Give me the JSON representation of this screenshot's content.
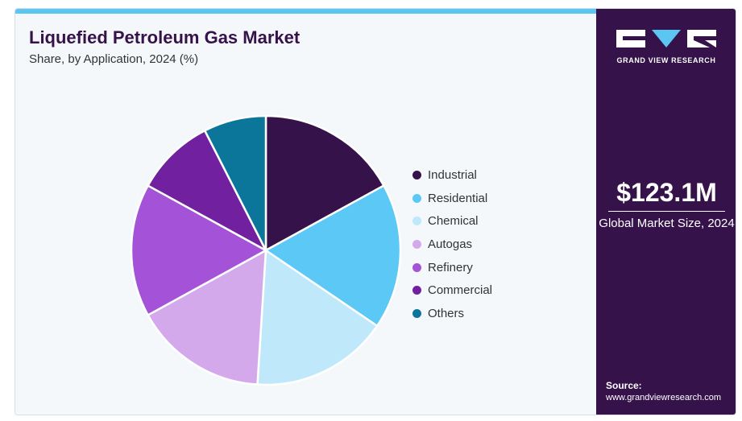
{
  "header": {
    "title": "Liquefied Petroleum Gas Market",
    "subtitle": "Share, by Application, 2024 (%)"
  },
  "brand": {
    "name": "GRAND VIEW RESEARCH",
    "logo_icon": "gvr-logo-icon"
  },
  "market": {
    "value": "$123.1M",
    "label": "Global Market Size, 2024"
  },
  "source": {
    "label": "Source:",
    "url": "www.grandviewresearch.com"
  },
  "colors": {
    "accent": "#5bc6f2",
    "panel": "#36124a",
    "background": "#f4f8fb"
  },
  "chart_data": {
    "type": "pie",
    "categories": [
      "Industrial",
      "Residential",
      "Chemical",
      "Autogas",
      "Refinery",
      "Commercial",
      "Others"
    ],
    "values": [
      17.0,
      17.5,
      16.5,
      16.0,
      16.0,
      9.5,
      7.5
    ],
    "colors": [
      "#36124a",
      "#5bc8f5",
      "#bfe9fb",
      "#d4a9ec",
      "#a453d9",
      "#71219f",
      "#0c769a"
    ],
    "legend_position": "right",
    "start_angle": "12 o'clock",
    "direction": "clockwise"
  }
}
